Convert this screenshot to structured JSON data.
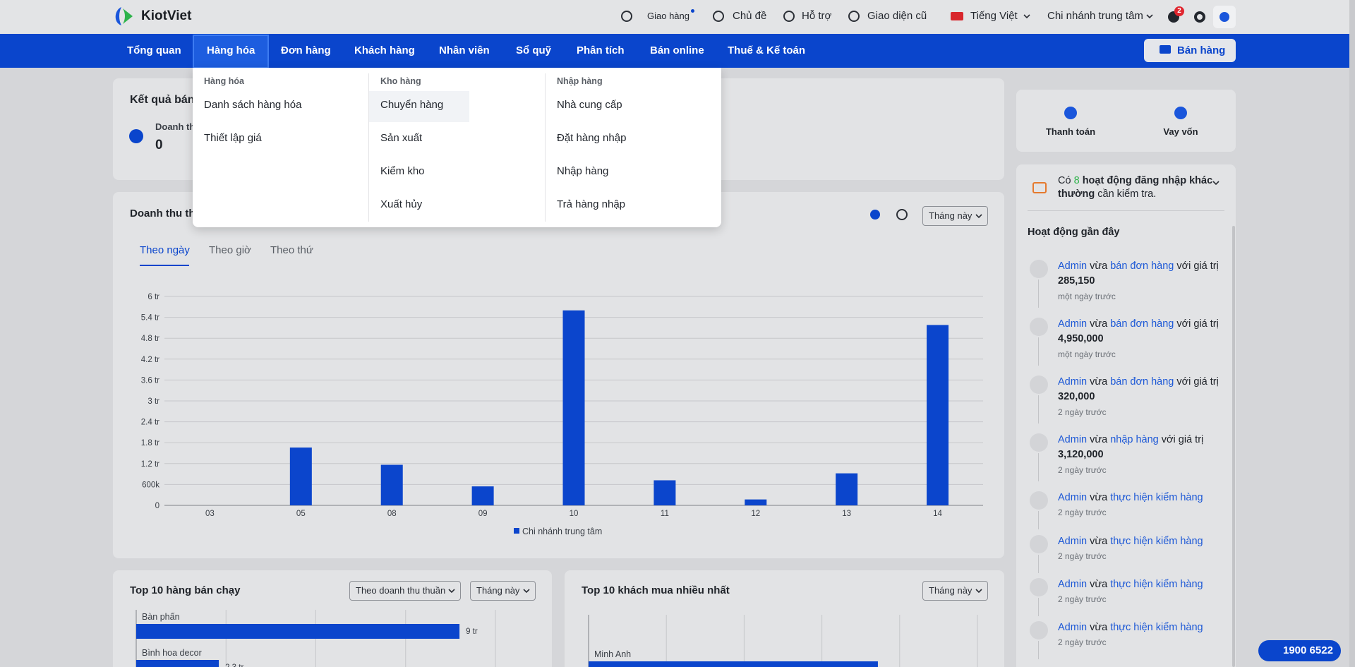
{
  "header": {
    "brand": "KiotViet",
    "links": [
      "Giao hàng",
      "Chủ đề",
      "Hỗ trợ",
      "Giao diện cũ",
      "Tiếng Việt",
      "Chi nhánh trung tâm"
    ],
    "notifications": "2"
  },
  "nav": {
    "items": [
      "Tổng quan",
      "Hàng hóa",
      "Đơn hàng",
      "Khách hàng",
      "Nhân viên",
      "Sổ quỹ",
      "Phân tích",
      "Bán online",
      "Thuế & Kế toán"
    ],
    "sell": "Bán hàng"
  },
  "menu": {
    "columns": [
      {
        "title": "Hàng hóa",
        "items": [
          "Danh sách hàng hóa",
          "Thiết lập giá"
        ]
      },
      {
        "title": "Kho hàng",
        "items": [
          "Chuyển hàng",
          "Sản xuất",
          "Kiểm kho",
          "Xuất hủy"
        ]
      },
      {
        "title": "Nhập hàng",
        "items": [
          "Nhà cung cấp",
          "Đặt hàng nhập",
          "Nhập hàng",
          "Trả hàng nhập"
        ]
      }
    ]
  },
  "summary": {
    "title": "Kết quả bán",
    "label": "Doanh th",
    "value": "0"
  },
  "revenue_panel": {
    "tabs": [
      "Theo ngày",
      "Theo giờ",
      "Theo thứ"
    ],
    "period": "Tháng này"
  },
  "top_products": {
    "sort": "Theo doanh thu thuần",
    "period": "Tháng này"
  },
  "top_customers": {
    "period": "Tháng này"
  },
  "chart_data": [
    {
      "type": "bar",
      "title": "Doanh thu thu",
      "categories": [
        "03",
        "05",
        "08",
        "09",
        "10",
        "11",
        "12",
        "13",
        "14"
      ],
      "series": [
        {
          "name": "Chi nhánh trung tâm",
          "color": "#0b45cc",
          "values": [
            0,
            1660000,
            1165000,
            545000,
            5600000,
            720000,
            170000,
            920000,
            5180000
          ]
        }
      ],
      "ylim": [
        0,
        6000000
      ],
      "yticks": [
        0,
        {
          "value": 600000,
          "label": "600k"
        },
        {
          "value": 1200000,
          "label": "1.2 tr"
        },
        {
          "value": 1800000,
          "label": "1.8 tr"
        },
        {
          "value": 2400000,
          "label": "2.4 tr"
        },
        {
          "value": 3000000,
          "label": "3 tr"
        },
        {
          "value": 3600000,
          "label": "3.6 tr"
        },
        {
          "value": 4200000,
          "label": "4.2 tr"
        },
        {
          "value": 4800000,
          "label": "4.8 tr"
        },
        {
          "value": 5400000,
          "label": "5.4 tr"
        },
        {
          "value": 6000000,
          "label": "6 tr"
        }
      ],
      "grid": true
    },
    {
      "type": "hbar",
      "title": "Top 10 hàng bán chạy",
      "categories": [
        "Bàn phấn",
        "Bình hoa decor"
      ],
      "values": [
        9000000,
        2300000
      ],
      "value_labels": [
        "9 tr",
        "2.3 tr"
      ],
      "color": "#0b45cc",
      "xlim": [
        0,
        10000000
      ],
      "xticks": [
        0,
        2500000,
        5000000,
        7500000,
        10000000
      ],
      "grid": true
    },
    {
      "type": "hbar",
      "title": "Top 10 khách mua nhiều nhất",
      "categories": [
        "Minh Anh"
      ],
      "values": [
        3720000
      ],
      "color": "#0b45cc",
      "xlim": [
        0,
        5000000
      ],
      "xticks": [
        0,
        1000000,
        2000000,
        3000000,
        4000000,
        5000000
      ],
      "grid": true
    }
  ],
  "quick_actions": [
    "Thanh toán",
    "Vay vốn"
  ],
  "alert": {
    "parts": [
      "Có",
      "8",
      "hoạt động đăng nhập khác thường",
      "cần kiểm tra."
    ]
  },
  "activity": {
    "title": "Hoạt động gần đây",
    "items": [
      {
        "user": "Admin",
        "verb": "vừa",
        "action": "bán đơn hàng",
        "suffix": "với giá trị",
        "value": "285,150",
        "time": "một ngày trước"
      },
      {
        "user": "Admin",
        "verb": "vừa",
        "action": "bán đơn hàng",
        "suffix": "với giá trị",
        "value": "4,950,000",
        "time": "một ngày trước"
      },
      {
        "user": "Admin",
        "verb": "vừa",
        "action": "bán đơn hàng",
        "suffix": "với giá trị",
        "value": "320,000",
        "time": "2 ngày trước"
      },
      {
        "user": "Admin",
        "verb": "vừa",
        "action": "nhập hàng",
        "suffix": "với giá trị",
        "value": "3,120,000",
        "time": "2 ngày trước"
      },
      {
        "user": "Admin",
        "verb": "vừa",
        "action": "thực hiện kiểm hàng",
        "time": "2 ngày trước"
      },
      {
        "user": "Admin",
        "verb": "vừa",
        "action": "thực hiện kiểm hàng",
        "time": "2 ngày trước"
      },
      {
        "user": "Admin",
        "verb": "vừa",
        "action": "thực hiện kiểm hàng",
        "time": "2 ngày trước"
      },
      {
        "user": "Admin",
        "verb": "vừa",
        "action": "thực hiện kiểm hàng",
        "time": "2 ngày trước"
      }
    ]
  },
  "hotline": "1900 6522"
}
